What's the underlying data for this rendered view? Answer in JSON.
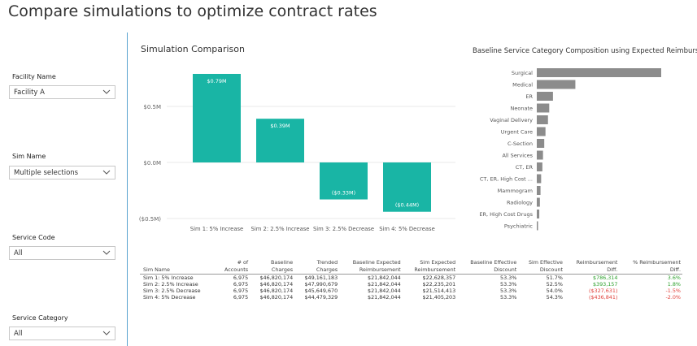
{
  "title": "Compare simulations to optimize contract rates",
  "slicers": [
    {
      "label": "Facility Name",
      "value": "Facility A"
    },
    {
      "label": "Sim Name",
      "value": "Multiple selections"
    },
    {
      "label": "Service Code",
      "value": "All"
    },
    {
      "label": "Service Category",
      "value": "All"
    }
  ],
  "colors": {
    "teal": "#19b5a5",
    "gray": "#8c8c8c",
    "positive": "#2ca02c",
    "negative": "#e0413b",
    "divider": "#5aa4cf"
  },
  "chart_data": [
    {
      "type": "bar",
      "title": "Simulation Comparison",
      "categories": [
        "Sim 1: 5% Increase",
        "Sim 2: 2.5% Increase",
        "Sim 3: 2.5% Decrease",
        "Sim 4: 5% Decrease"
      ],
      "values": [
        0.79,
        0.39,
        -0.33,
        -0.44
      ],
      "data_labels": [
        "$0.79M",
        "$0.39M",
        "($0.33M)",
        "($0.44M)"
      ],
      "yticks": [
        0.5,
        0.0,
        -0.5
      ],
      "ytick_labels": [
        "$0.5M",
        "$0.0M",
        "($0.5M)"
      ],
      "ylim": [
        -0.5,
        0.85
      ],
      "unit": "$M"
    },
    {
      "type": "bar",
      "orientation": "horizontal",
      "title": "Baseline Service Category Composition using Expected Reimbursement",
      "categories": [
        "Surgical",
        "Medical",
        "ER",
        "Neonate",
        "Vaginal Delivery",
        "Urgent Care",
        "C-Section",
        "All Services",
        "CT, ER",
        "CT, ER, High Cost ...",
        "Mammogram",
        "Radiology",
        "ER, High Cost Drugs",
        "Psychiatric"
      ],
      "values": [
        100,
        31,
        13,
        10,
        9,
        7,
        6,
        5,
        4.5,
        3.5,
        3,
        2.5,
        2,
        1
      ],
      "unit": "relative"
    }
  ],
  "table": {
    "headers": [
      [
        "Sim Name"
      ],
      [
        "# of",
        "Accounts"
      ],
      [
        "Baseline",
        "Charges"
      ],
      [
        "Trended",
        "Charges"
      ],
      [
        "Baseline Expected",
        "Reimbursement"
      ],
      [
        "Sim Expected",
        "Reimbursement"
      ],
      [
        "Baseline Effective",
        "Discount"
      ],
      [
        "Sim Effective",
        "Discount"
      ],
      [
        "Reimbursement",
        "Diff."
      ],
      [
        "% Reimbursement",
        "Diff."
      ]
    ],
    "rows": [
      [
        "Sim 1: 5% Increase",
        "6,975",
        "$46,820,174",
        "$49,161,183",
        "$21,842,044",
        "$22,628,357",
        "53.3%",
        "51.7%",
        "$786,314",
        "3.6%"
      ],
      [
        "Sim 2: 2.5% Increase",
        "6,975",
        "$46,820,174",
        "$47,990,679",
        "$21,842,044",
        "$22,235,201",
        "53.3%",
        "52.5%",
        "$393,157",
        "1.8%"
      ],
      [
        "Sim 3: 2.5% Decrease",
        "6,975",
        "$46,820,174",
        "$45,649,670",
        "$21,842,044",
        "$21,514,413",
        "53.3%",
        "54.0%",
        "($327,631)",
        "-1.5%"
      ],
      [
        "Sim 4: 5% Decrease",
        "6,975",
        "$46,820,174",
        "$44,479,329",
        "$21,842,044",
        "$21,405,203",
        "53.3%",
        "54.3%",
        "($436,841)",
        "-2.0%"
      ]
    ]
  }
}
